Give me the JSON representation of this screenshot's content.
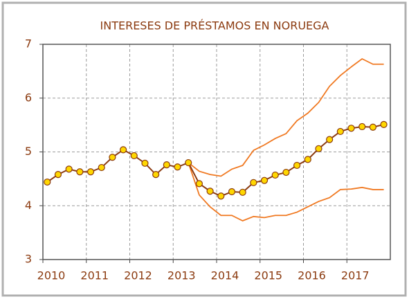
{
  "chart_data": {
    "type": "line",
    "title": "INTERESES DE PRÉSTAMOS EN NORUEGA",
    "x": [
      2010.1,
      2010.35,
      2010.6,
      2010.85,
      2011.1,
      2011.35,
      2011.6,
      2011.85,
      2012.1,
      2012.35,
      2012.6,
      2012.85,
      2013.1,
      2013.35,
      2013.6,
      2013.85,
      2014.1,
      2014.35,
      2014.6,
      2014.85,
      2015.1,
      2015.35,
      2015.6,
      2015.85,
      2016.1,
      2016.35,
      2016.6,
      2016.85,
      2017.1,
      2017.35,
      2017.6,
      2017.85
    ],
    "series": [
      {
        "color": "#f07820",
        "markers": false,
        "values": [
          null,
          null,
          null,
          null,
          null,
          null,
          null,
          null,
          null,
          null,
          null,
          null,
          null,
          4.8,
          4.64,
          4.58,
          4.55,
          4.68,
          4.75,
          5.03,
          5.13,
          5.25,
          5.34,
          5.58,
          5.72,
          5.92,
          6.22,
          6.42,
          6.58,
          6.73,
          6.63,
          6.63
        ]
      },
      {
        "color": "#f07820",
        "markers": false,
        "values": [
          null,
          null,
          null,
          null,
          null,
          null,
          null,
          null,
          null,
          null,
          null,
          null,
          null,
          4.8,
          4.2,
          3.98,
          3.82,
          3.82,
          3.72,
          3.8,
          3.78,
          3.82,
          3.82,
          3.88,
          3.98,
          4.08,
          4.15,
          4.3,
          4.31,
          4.34,
          4.3,
          4.3
        ]
      },
      {
        "color": "#8b3a0f",
        "markers": true,
        "marker_color": "#ffd700",
        "values": [
          4.44,
          4.58,
          4.68,
          4.63,
          4.63,
          4.71,
          4.9,
          5.04,
          4.93,
          4.79,
          4.58,
          4.76,
          4.72,
          4.8,
          4.41,
          4.27,
          4.18,
          4.26,
          4.25,
          4.43,
          4.47,
          4.57,
          4.62,
          4.75,
          4.86,
          5.06,
          5.23,
          5.38,
          5.44,
          5.47,
          5.46,
          5.51
        ]
      }
    ],
    "xlim": [
      2010,
      2018
    ],
    "xticks": [
      2010,
      2011,
      2012,
      2013,
      2014,
      2015,
      2016,
      2017
    ],
    "ylim": [
      3,
      7
    ],
    "yticks": [
      3,
      4,
      5,
      6,
      7
    ],
    "grid": true
  }
}
